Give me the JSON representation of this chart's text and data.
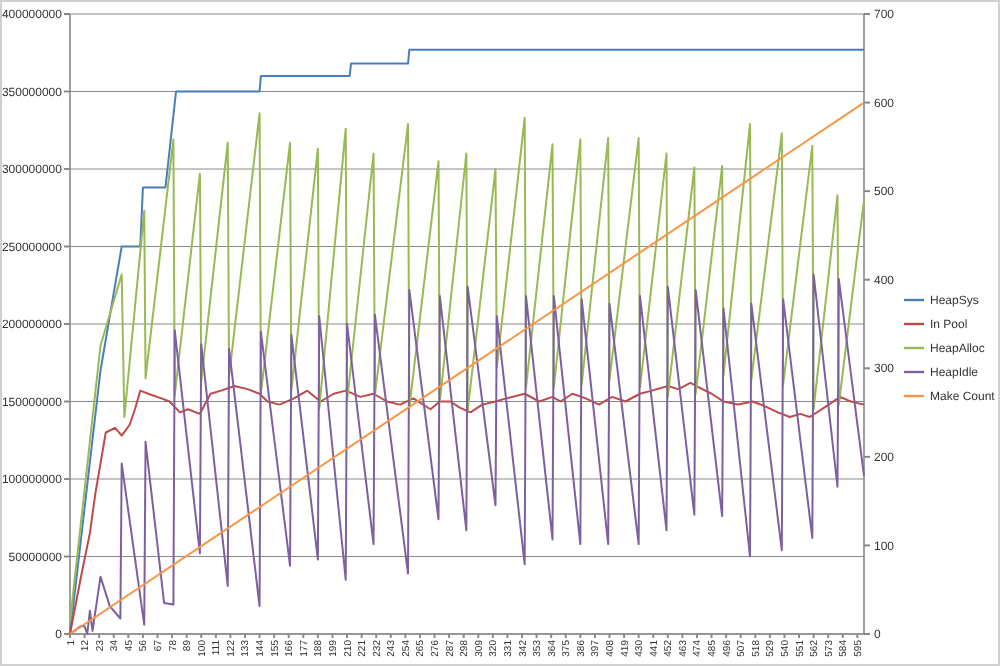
{
  "chart_data": {
    "type": "line",
    "xlim": [
      1,
      600
    ],
    "xticks": [
      1,
      12,
      23,
      34,
      45,
      56,
      67,
      78,
      89,
      100,
      111,
      122,
      133,
      144,
      155,
      166,
      177,
      188,
      199,
      210,
      221,
      232,
      243,
      254,
      265,
      276,
      287,
      298,
      309,
      320,
      331,
      342,
      353,
      364,
      375,
      386,
      397,
      408,
      419,
      430,
      441,
      452,
      463,
      474,
      485,
      496,
      507,
      518,
      529,
      540,
      551,
      562,
      573,
      584,
      595
    ],
    "ylim": [
      0,
      400000000
    ],
    "yticks": [
      0,
      50000000,
      100000000,
      150000000,
      200000000,
      250000000,
      300000000,
      350000000,
      400000000
    ],
    "y2lim": [
      0,
      700
    ],
    "y2ticks": [
      0,
      100,
      200,
      300,
      400,
      500,
      600,
      700
    ],
    "grid": "y",
    "legend": "right",
    "series": [
      {
        "name": "HeapSys",
        "color": "#4a7ebb",
        "x": [
          1,
          24,
          40,
          54,
          56,
          73,
          81,
          144,
          145,
          212,
          213,
          256,
          257,
          600
        ],
        "values": [
          0,
          170000000,
          250000000,
          250000000,
          288000000,
          288000000,
          350000000,
          350000000,
          360000000,
          360000000,
          368000000,
          368000000,
          377000000,
          377000000
        ]
      },
      {
        "name": "In Pool",
        "color": "#be4b48",
        "x": [
          1,
          10,
          16,
          20,
          24,
          28,
          35,
          40,
          46,
          50,
          54,
          60,
          70,
          76,
          84,
          90,
          99,
          107,
          115,
          125,
          135,
          144,
          150,
          159,
          170,
          180,
          190,
          200,
          209,
          220,
          230,
          240,
          250,
          260,
          273,
          280,
          288,
          295,
          303,
          312,
          322,
          330,
          344,
          355,
          365,
          371,
          380,
          390,
          400,
          410,
          420,
          431,
          440,
          452,
          460,
          469,
          478,
          485,
          494,
          505,
          516,
          525,
          535,
          544,
          552,
          559,
          570,
          582,
          590,
          600
        ],
        "values": [
          0,
          40000000,
          65000000,
          90000000,
          110000000,
          130000000,
          133000000,
          128000000,
          135000000,
          145000000,
          157000000,
          155000000,
          152000000,
          150000000,
          143000000,
          145000000,
          142000000,
          155000000,
          157000000,
          160000000,
          158000000,
          155000000,
          150000000,
          148000000,
          152000000,
          157000000,
          150000000,
          155000000,
          157000000,
          153000000,
          155000000,
          150000000,
          148000000,
          152000000,
          145000000,
          150000000,
          150000000,
          146000000,
          143000000,
          148000000,
          150000000,
          152000000,
          155000000,
          150000000,
          153000000,
          150000000,
          155000000,
          152000000,
          148000000,
          153000000,
          150000000,
          155000000,
          157000000,
          160000000,
          158000000,
          162000000,
          158000000,
          155000000,
          150000000,
          148000000,
          150000000,
          147000000,
          143000000,
          140000000,
          142000000,
          140000000,
          146000000,
          153000000,
          150000000,
          148000000
        ]
      },
      {
        "name": "HeapAlloc",
        "color": "#98b954",
        "x": [
          1,
          24,
          40,
          42,
          57,
          58,
          79,
          80,
          99,
          100,
          120,
          121,
          144,
          145,
          167,
          168,
          188,
          189,
          209,
          210,
          230,
          231,
          256,
          257,
          279,
          280,
          300,
          301,
          322,
          323,
          344,
          345,
          365,
          366,
          386,
          387,
          407,
          408,
          430,
          431,
          451,
          452,
          472,
          473,
          493,
          494,
          514,
          515,
          538,
          539,
          561,
          562,
          580,
          581,
          600
        ],
        "values": [
          8000000,
          186000000,
          232000000,
          140000000,
          273000000,
          165000000,
          319000000,
          154000000,
          297000000,
          163000000,
          317000000,
          166000000,
          336000000,
          155000000,
          317000000,
          157000000,
          313000000,
          145000000,
          326000000,
          150000000,
          310000000,
          154000000,
          329000000,
          146000000,
          305000000,
          150000000,
          310000000,
          144000000,
          300000000,
          172000000,
          333000000,
          159000000,
          316000000,
          159000000,
          319000000,
          161000000,
          320000000,
          164000000,
          320000000,
          159000000,
          310000000,
          153000000,
          301000000,
          155000000,
          302000000,
          167000000,
          329000000,
          164000000,
          323000000,
          161000000,
          315000000,
          145000000,
          283000000,
          148000000,
          280000000
        ]
      },
      {
        "name": "HeapIdle",
        "color": "#7d60a0",
        "x": [
          1,
          9,
          12,
          14,
          16,
          18,
          24,
          31,
          39,
          40,
          57,
          58,
          72,
          79,
          80,
          99,
          100,
          120,
          121,
          144,
          145,
          167,
          168,
          188,
          189,
          209,
          210,
          230,
          231,
          256,
          257,
          279,
          280,
          300,
          301,
          322,
          323,
          344,
          345,
          365,
          366,
          386,
          387,
          407,
          408,
          430,
          431,
          451,
          452,
          472,
          473,
          493,
          494,
          514,
          515,
          538,
          539,
          561,
          562,
          580,
          581,
          600
        ],
        "values": [
          0,
          5000000,
          5000000,
          0,
          15000000,
          2000000,
          37000000,
          18000000,
          10000000,
          110000000,
          6000000,
          124000000,
          20000000,
          19000000,
          196000000,
          52000000,
          187000000,
          31000000,
          184000000,
          18000000,
          195000000,
          44000000,
          193000000,
          48000000,
          205000000,
          35000000,
          200000000,
          58000000,
          206000000,
          39000000,
          222000000,
          74000000,
          218000000,
          67000000,
          224000000,
          83000000,
          205000000,
          45000000,
          218000000,
          61000000,
          218000000,
          58000000,
          216000000,
          58000000,
          213000000,
          58000000,
          218000000,
          67000000,
          224000000,
          77000000,
          222000000,
          76000000,
          210000000,
          50000000,
          213000000,
          54000000,
          216000000,
          62000000,
          232000000,
          95000000,
          229000000,
          102000000
        ]
      },
      {
        "name": "Make Count",
        "color": "#f79646",
        "axis": "y2",
        "x": [
          1,
          600
        ],
        "values": [
          0,
          600
        ]
      }
    ]
  }
}
